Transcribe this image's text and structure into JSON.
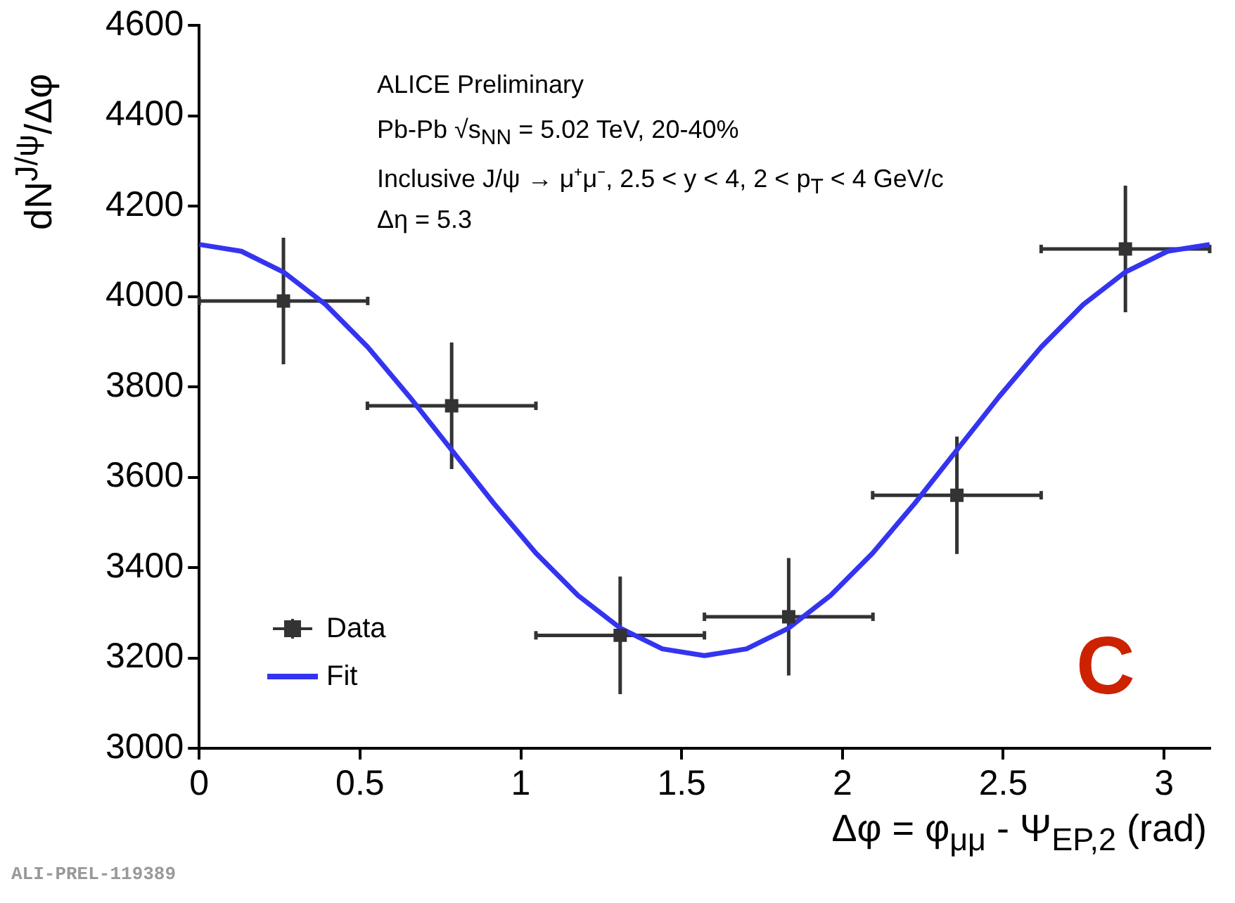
{
  "chart_data": {
    "type": "scatter",
    "xlabel": "Δφ = φ$_{μμ}$ - Ψ$_{EP,2}$ (rad)",
    "ylabel": "dN$^{J/ψ}$/Δφ",
    "annotations": [
      "ALICE Preliminary",
      "Pb-Pb √s$_{NN}$ = 5.02 TeV, 20-40%",
      "Inclusive J/ψ → μ⁺μ⁻, 2.5 < y < 4, 2 < p$_{T}$ < 4 GeV/c",
      "Δη = 5.3",
      "C",
      "ALI-PREL-119389"
    ],
    "xlim": [
      0,
      3.142
    ],
    "ylim": [
      3000,
      4600
    ],
    "xticks": [
      0,
      0.5,
      1,
      1.5,
      2,
      2.5,
      3
    ],
    "yticks": [
      3000,
      3200,
      3400,
      3600,
      3800,
      4000,
      4200,
      4400,
      4600
    ],
    "grid": false,
    "legend": "bottom left",
    "series": [
      {
        "name": "Data",
        "type": "scatter",
        "marker": "square",
        "color": "#333333",
        "x": [
          0.262,
          0.785,
          1.309,
          1.833,
          2.356,
          2.88
        ],
        "values": [
          3990,
          3758,
          3250,
          3291,
          3560,
          4105
        ],
        "errors": [
          140,
          140,
          130,
          130,
          130,
          140
        ],
        "xerrors": [
          0.262,
          0.262,
          0.262,
          0.262,
          0.262,
          0.262
        ]
      },
      {
        "name": "Fit",
        "type": "line",
        "marker": "none",
        "line_style": "solid",
        "color": "#3434f0",
        "x": [
          0,
          0.131,
          0.262,
          0.393,
          0.524,
          0.654,
          0.785,
          0.916,
          1.047,
          1.178,
          1.309,
          1.44,
          1.571,
          1.702,
          1.833,
          1.963,
          2.094,
          2.225,
          2.356,
          2.487,
          2.618,
          2.749,
          2.88,
          3.011,
          3.142
        ],
        "values": [
          4115,
          4100,
          4054,
          3982,
          3888,
          3778,
          3660,
          3542,
          3432,
          3338,
          3266,
          3220,
          3205,
          3220,
          3266,
          3338,
          3432,
          3542,
          3660,
          3778,
          3888,
          3982,
          4054,
          4100,
          4115
        ]
      }
    ]
  }
}
